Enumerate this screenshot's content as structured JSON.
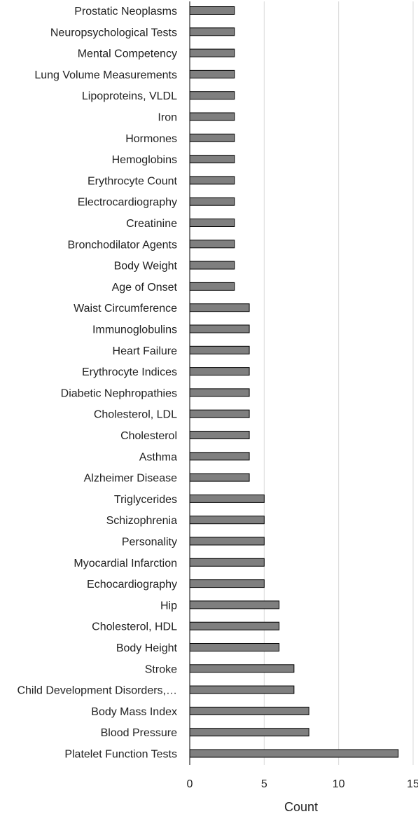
{
  "chart_data": {
    "type": "bar",
    "orientation": "horizontal",
    "categories": [
      "Prostatic Neoplasms",
      "Neuropsychological Tests",
      "Mental Competency",
      "Lung Volume Measurements",
      "Lipoproteins, VLDL",
      "Iron",
      "Hormones",
      "Hemoglobins",
      "Erythrocyte Count",
      "Electrocardiography",
      "Creatinine",
      "Bronchodilator Agents",
      "Body Weight",
      "Age of Onset",
      "Waist Circumference",
      "Immunoglobulins",
      "Heart Failure",
      "Erythrocyte Indices",
      "Diabetic Nephropathies",
      "Cholesterol, LDL",
      "Cholesterol",
      "Asthma",
      "Alzheimer Disease",
      "Triglycerides",
      "Schizophrenia",
      "Personality",
      "Myocardial Infarction",
      "Echocardiography",
      "Hip",
      "Cholesterol, HDL",
      "Body Height",
      "Stroke",
      "Child Development Disorders,…",
      "Body Mass Index",
      "Blood Pressure",
      "Platelet Function Tests"
    ],
    "values": [
      3,
      3,
      3,
      3,
      3,
      3,
      3,
      3,
      3,
      3,
      3,
      3,
      3,
      3,
      4,
      4,
      4,
      4,
      4,
      4,
      4,
      4,
      4,
      5,
      5,
      5,
      5,
      5,
      6,
      6,
      6,
      7,
      7,
      8,
      8,
      14
    ],
    "xlabel": "Count",
    "ylabel": "",
    "xlim": [
      0,
      15
    ],
    "xticks": [
      "0",
      "5",
      "10",
      "15"
    ],
    "grid": true,
    "bar_color": "#7f7f7f",
    "bar_edge_color": "#000000"
  }
}
